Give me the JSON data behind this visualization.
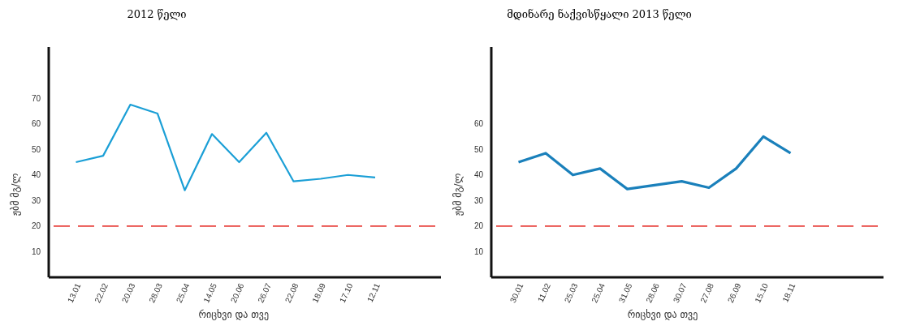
{
  "chart_data": [
    {
      "type": "line",
      "title": "2012 წელი",
      "xlabel": "რიცხვი და თვე",
      "ylabel": "ჟბმ მგ/ლ",
      "categories": [
        "13.01",
        "22.02",
        "20.03",
        "28.03",
        "25.04",
        "14.05",
        "20.06",
        "26.07",
        "22.08",
        "18.09",
        "17.10",
        "12.11"
      ],
      "series": [
        {
          "color": "#1b9fd6",
          "values": [
            45,
            47.5,
            67.5,
            64,
            34,
            56,
            45,
            56.5,
            37.5,
            38.5,
            40,
            39
          ]
        }
      ],
      "ylim": [
        0,
        90
      ],
      "yticks": [
        10,
        20,
        30,
        40,
        50,
        60,
        70
      ],
      "grid": false,
      "marker": "none",
      "line_style": "solid",
      "ref_lines": [
        {
          "axis": "y",
          "value": 20,
          "color": "#e8413c",
          "line_style": "dashed"
        }
      ]
    },
    {
      "type": "line",
      "title": "მდინარე ნაქვისწყალი 2013 წელი",
      "xlabel": "რიცხვი და თვე",
      "ylabel": "ჟბმ მგ/ლ",
      "categories": [
        "30.01",
        "11.02",
        "25.03",
        "25.04",
        "31.05",
        "28.06",
        "30.07",
        "27.08",
        "26.09",
        "15.10",
        "18.11"
      ],
      "series": [
        {
          "color": "#1a80bb",
          "values": [
            45,
            48.5,
            40,
            42.5,
            34.5,
            36,
            37.5,
            35,
            42.5,
            55,
            48.5
          ]
        }
      ],
      "ylim": [
        0,
        90
      ],
      "yticks": [
        10,
        20,
        30,
        40,
        50,
        60
      ],
      "grid": false,
      "marker": "none",
      "line_style": "solid",
      "ref_lines": [
        {
          "axis": "y",
          "value": 20,
          "color": "#e8413c",
          "line_style": "dashed"
        }
      ]
    }
  ]
}
